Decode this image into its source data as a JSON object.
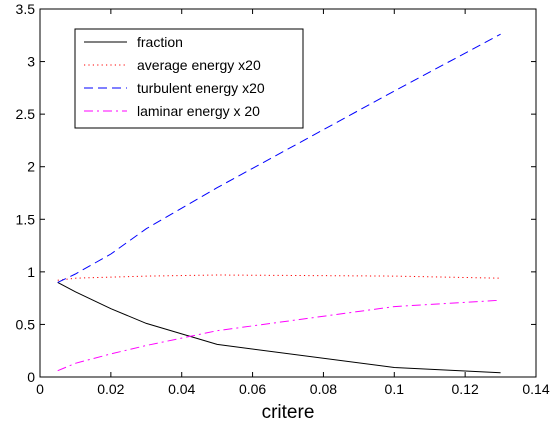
{
  "chart_data": {
    "type": "line",
    "title": "",
    "xlabel": "critere",
    "ylabel": "",
    "xlim": [
      0,
      0.14
    ],
    "ylim": [
      0,
      3.5
    ],
    "xticks": [
      "0",
      "0.02",
      "0.04",
      "0.06",
      "0.08",
      "0.1",
      "0.12",
      "0.14"
    ],
    "yticks": [
      "0",
      "0.5",
      "1",
      "1.5",
      "2",
      "2.5",
      "3",
      "3.5"
    ],
    "grid": false,
    "legend_position": "top-left",
    "series": [
      {
        "name": "fraction",
        "color": "#000000",
        "dash": "solid",
        "x": [
          0.005,
          0.01,
          0.02,
          0.03,
          0.05,
          0.1,
          0.13
        ],
        "y": [
          0.9,
          0.81,
          0.65,
          0.51,
          0.31,
          0.09,
          0.04
        ]
      },
      {
        "name": "average energy x20",
        "color": "#ff0000",
        "dash": "dotted",
        "x": [
          0.005,
          0.01,
          0.02,
          0.03,
          0.05,
          0.1,
          0.13
        ],
        "y": [
          0.92,
          0.94,
          0.95,
          0.96,
          0.97,
          0.96,
          0.94
        ]
      },
      {
        "name": "turbulent energy x20",
        "color": "#0000ff",
        "dash": "dashed",
        "x": [
          0.005,
          0.01,
          0.02,
          0.03,
          0.05,
          0.1,
          0.13
        ],
        "y": [
          0.9,
          0.98,
          1.17,
          1.41,
          1.8,
          2.72,
          3.26
        ]
      },
      {
        "name": "laminar energy x 20",
        "color": "#ff00ff",
        "dash": "dashdot",
        "x": [
          0.005,
          0.01,
          0.02,
          0.03,
          0.05,
          0.1,
          0.13
        ],
        "y": [
          0.06,
          0.13,
          0.22,
          0.3,
          0.44,
          0.67,
          0.73
        ]
      }
    ]
  }
}
